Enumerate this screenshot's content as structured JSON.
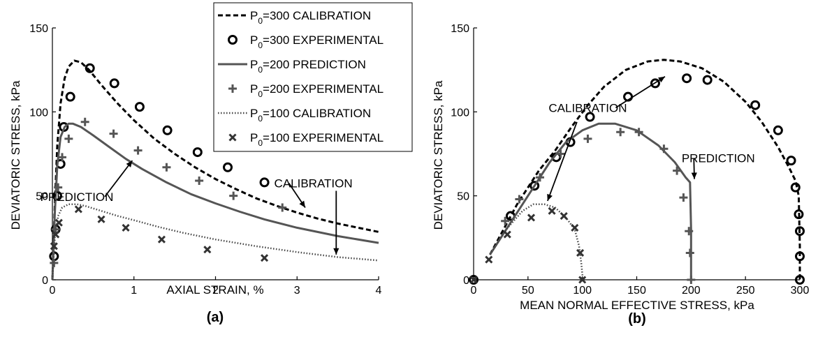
{
  "chart_data": [
    {
      "type": "line",
      "panel_label": "(a)",
      "xlabel": "AXIAL STRAIN, %",
      "ylabel": "DEVIATORIC STRESS, kPa",
      "xlim": [
        0,
        4
      ],
      "ylim": [
        0,
        150
      ],
      "xticks": [
        "0",
        "1",
        "2",
        "3",
        "4"
      ],
      "yticks": [
        "0",
        "50",
        "100",
        "150"
      ],
      "grid": false,
      "legend": {
        "placement": "top-right",
        "entries": [
          {
            "series": "P0=300 CALIBRATION",
            "p": "P",
            "sub": "0",
            "rest": "=300 CALIBRATION"
          },
          {
            "series": "P0=300 EXPERIMENTAL",
            "p": "P",
            "sub": "0",
            "rest": "=300 EXPERIMENTAL"
          },
          {
            "series": "P0=200 PREDICTION",
            "p": "P",
            "sub": "0",
            "rest": "=200 PREDICTION"
          },
          {
            "series": "P0=200 EXPERIMENTAL",
            "p": "P",
            "sub": "0",
            "rest": "=200 EXPERIMENTAL"
          },
          {
            "series": "P0=100 CALIBRATION",
            "p": "P",
            "sub": "0",
            "rest": "=100 CALIBRATION"
          },
          {
            "series": "P0=100 EXPERIMENTAL",
            "p": "P",
            "sub": "0",
            "rest": "=100 EXPERIMENTAL"
          }
        ]
      },
      "annotations": [
        {
          "text": "PREDICTION",
          "x": 0.3,
          "y": 47,
          "ax": 0.98,
          "ay": 71
        },
        {
          "text": "CALIBRATION",
          "x": 3.2,
          "y": 55,
          "ax": 3.1,
          "ay": 43
        },
        {
          "text": "",
          "x": 3.48,
          "y": 53,
          "ax": 3.48,
          "ay": 15
        }
      ],
      "series": [
        {
          "name": "P0=300 CALIBRATION",
          "kind": "line",
          "style": "dashed",
          "color": "#000000",
          "x": [
            0,
            0.03,
            0.06,
            0.1,
            0.15,
            0.2,
            0.27,
            0.35,
            0.45,
            0.6,
            0.8,
            1.0,
            1.25,
            1.5,
            1.75,
            2.0,
            2.25,
            2.5,
            2.75,
            3.0,
            3.25,
            3.5,
            3.75,
            4.0
          ],
          "y": [
            0,
            45,
            80,
            105,
            120,
            127,
            130.5,
            129.5,
            125,
            116,
            105,
            95,
            84,
            75,
            67,
            60,
            54,
            48.5,
            44,
            40,
            36.5,
            33.5,
            31,
            28.5
          ]
        },
        {
          "name": "P0=300 EXPERIMENTAL",
          "kind": "marker",
          "marker": "circle",
          "color": "#000000",
          "x": [
            0.02,
            0.04,
            0.06,
            0.1,
            0.14,
            0.22,
            0.46,
            0.76,
            1.07,
            1.41,
            1.78,
            2.15,
            2.6
          ],
          "y": [
            14,
            30,
            50,
            69,
            91,
            109,
            126,
            117,
            103,
            89,
            76,
            67,
            58
          ]
        },
        {
          "name": "P0=200 PREDICTION",
          "kind": "line",
          "style": "solid",
          "color": "#555555",
          "x": [
            0,
            0.03,
            0.06,
            0.1,
            0.15,
            0.2,
            0.25,
            0.35,
            0.5,
            0.7,
            0.9,
            1.1,
            1.4,
            1.7,
            2.0,
            2.3,
            2.6,
            3.0,
            3.5,
            4.0
          ],
          "y": [
            0,
            40,
            68,
            85,
            91,
            93,
            93,
            91,
            86,
            79,
            72,
            66,
            58,
            51,
            45.5,
            40.5,
            36,
            31,
            26,
            22
          ]
        },
        {
          "name": "P0=200 EXPERIMENTAL",
          "kind": "marker",
          "marker": "plus",
          "color": "#555555",
          "x": [
            0.02,
            0.04,
            0.07,
            0.12,
            0.2,
            0.4,
            0.75,
            1.05,
            1.4,
            1.8,
            2.22,
            2.82
          ],
          "y": [
            10,
            30,
            55,
            73,
            84,
            94,
            87,
            77,
            67,
            59,
            50,
            43
          ]
        },
        {
          "name": "P0=100 CALIBRATION",
          "kind": "line",
          "style": "dotted",
          "color": "#444444",
          "x": [
            0,
            0.03,
            0.07,
            0.12,
            0.2,
            0.3,
            0.4,
            0.6,
            0.8,
            1.0,
            1.3,
            1.6,
            2.0,
            2.5,
            3.0,
            3.5,
            4.0
          ],
          "y": [
            0,
            25,
            38,
            43,
            45,
            45,
            44,
            41,
            38,
            35.5,
            31.5,
            28,
            24,
            20,
            16.5,
            13.5,
            11.5
          ]
        },
        {
          "name": "P0=100 EXPERIMENTAL",
          "kind": "marker",
          "marker": "x",
          "color": "#333333",
          "x": [
            0.02,
            0.04,
            0.08,
            0.32,
            0.6,
            0.9,
            1.34,
            1.9,
            2.6
          ],
          "y": [
            20,
            27,
            34,
            42,
            36,
            31,
            24,
            18,
            13
          ]
        }
      ]
    },
    {
      "type": "line",
      "panel_label": "(b)",
      "xlabel": "MEAN NORMAL EFFECTIVE STRESS, kPa",
      "ylabel": "DEVIATORIC STRESS, kPa",
      "xlim": [
        0,
        300
      ],
      "ylim": [
        0,
        150
      ],
      "xticks": [
        "0",
        "50",
        "100",
        "150",
        "200",
        "250",
        "300"
      ],
      "yticks": [
        "0",
        "50",
        "100",
        "150"
      ],
      "grid": false,
      "annotations": [
        {
          "text": "CALIBRATION",
          "x": 105,
          "y": 100,
          "ax": 176,
          "ay": 121
        },
        {
          "text": "",
          "x": 95,
          "y": 94,
          "ax": 68,
          "ay": 47
        },
        {
          "text": "PREDICTION",
          "x": 225,
          "y": 70,
          "ax": 203,
          "ay": 60
        }
      ],
      "series": [
        {
          "name": "P0=300 CALIBRATION",
          "kind": "line",
          "style": "dashed",
          "color": "#000000",
          "x": [
            15,
            40,
            60,
            75,
            90,
            105,
            120,
            140,
            160,
            175,
            190,
            210,
            230,
            250,
            265,
            280,
            290,
            296,
            299,
            300,
            300
          ],
          "y": [
            15,
            45,
            65,
            77,
            91,
            104,
            115,
            125,
            130,
            131,
            130,
            126,
            118,
            106,
            94,
            79,
            67,
            59,
            50,
            20,
            0
          ]
        },
        {
          "name": "P0=300 EXPERIMENTAL",
          "kind": "marker",
          "marker": "circle",
          "color": "#000000",
          "x": [
            0,
            34,
            56,
            76,
            89,
            107,
            142,
            167,
            196,
            215,
            259,
            280,
            292,
            296,
            299,
            300,
            300,
            300
          ],
          "y": [
            0,
            38,
            56,
            73,
            82,
            97,
            109,
            117,
            120,
            119,
            104,
            89,
            71,
            55,
            39,
            29,
            14,
            0
          ]
        },
        {
          "name": "P0=200 PREDICTION",
          "kind": "line",
          "style": "solid",
          "color": "#555555",
          "x": [
            15,
            30,
            50,
            70,
            85,
            100,
            115,
            130,
            150,
            170,
            185,
            195,
            199,
            200,
            200
          ],
          "y": [
            15,
            30,
            50,
            70,
            82,
            89,
            93,
            93,
            89,
            80,
            70,
            61,
            58,
            30,
            0
          ]
        },
        {
          "name": "P0=200 EXPERIMENTAL",
          "kind": "marker",
          "marker": "plus",
          "color": "#555555",
          "x": [
            29,
            42,
            61,
            80,
            105,
            135,
            152,
            175,
            187,
            193,
            198,
            199,
            200
          ],
          "y": [
            35,
            48,
            61,
            75,
            84,
            88,
            88,
            78,
            65,
            49,
            29,
            16,
            0
          ]
        },
        {
          "name": "P0=100 CALIBRATION",
          "kind": "line",
          "style": "dotted",
          "color": "#444444",
          "x": [
            15,
            30,
            45,
            55,
            65,
            75,
            85,
            93,
            97,
            99,
            100,
            100
          ],
          "y": [
            15,
            30,
            41,
            45,
            45,
            43,
            37,
            30,
            20,
            10,
            3,
            0
          ]
        },
        {
          "name": "P0=100 EXPERIMENTAL",
          "kind": "marker",
          "marker": "x",
          "color": "#333333",
          "x": [
            0,
            14,
            31,
            53,
            72,
            83,
            93,
            98,
            100
          ],
          "y": [
            0,
            12,
            27,
            37,
            41,
            38,
            31,
            16,
            0
          ]
        }
      ]
    }
  ]
}
